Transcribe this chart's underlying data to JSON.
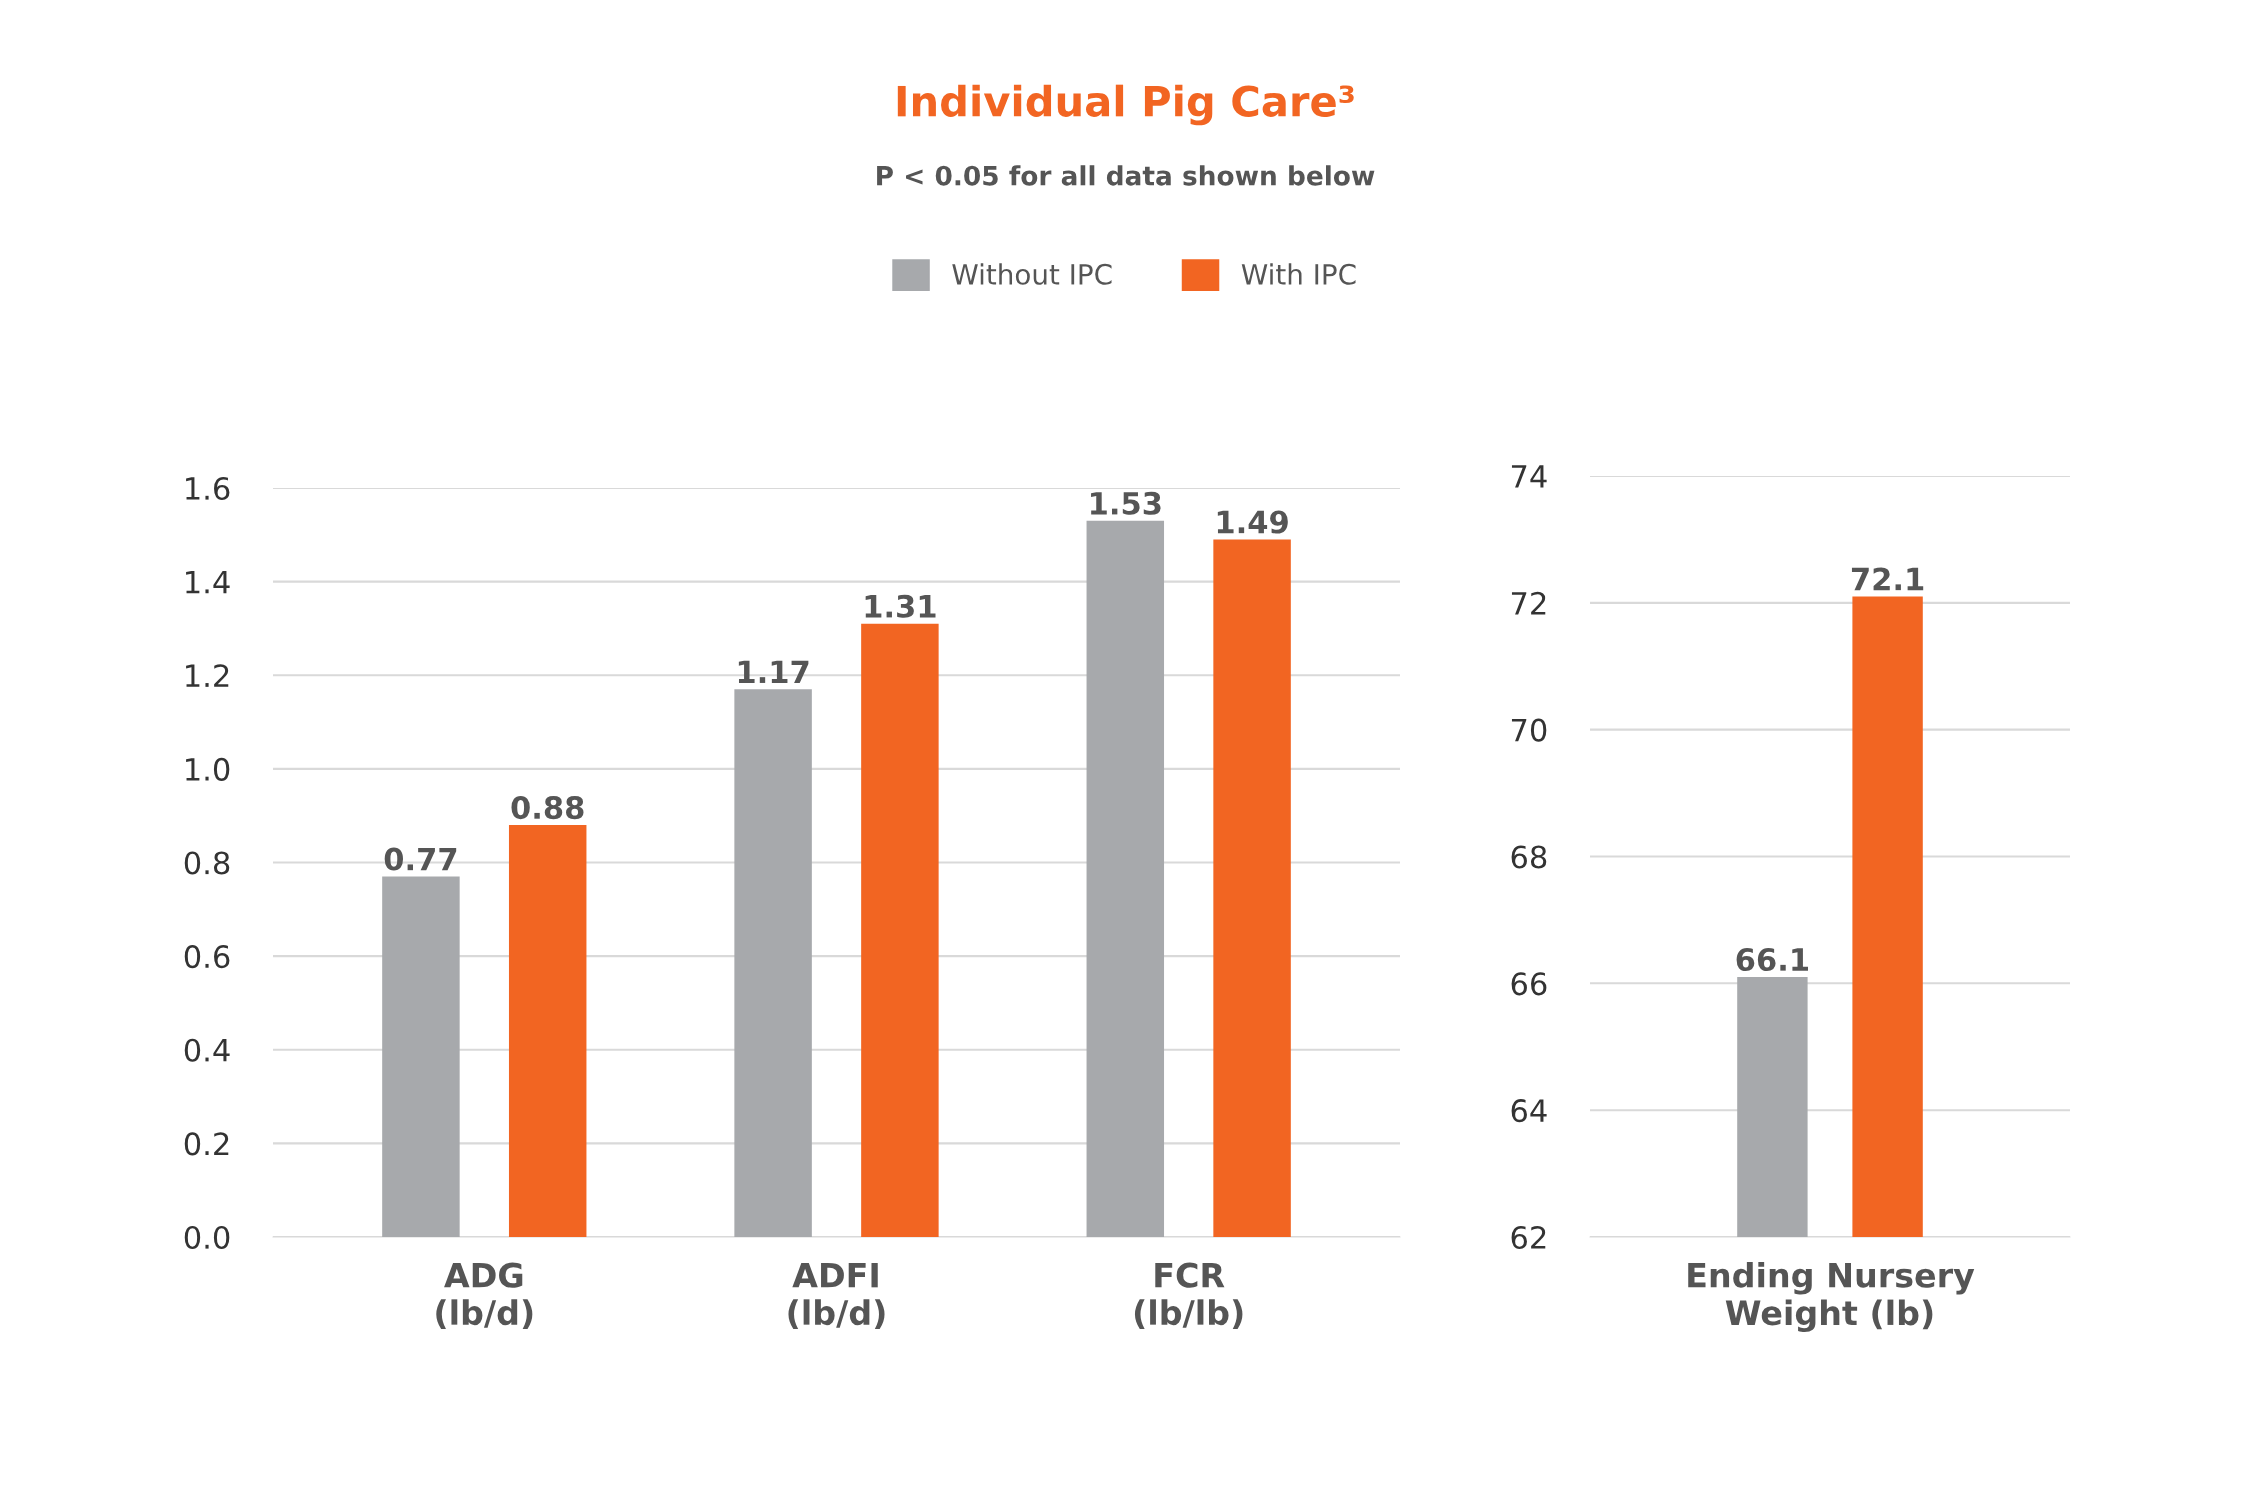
{
  "chart_data": [
    {
      "type": "bar",
      "title": "Individual Pig Care³",
      "subtitle": "P < 0.05 for all data shown below",
      "categories": [
        "ADG\n(lb/d)",
        "ADFI\n(lb/d)",
        "FCR\n(lb/lb)"
      ],
      "series": [
        {
          "name": "Without IPC",
          "color": "#a7a9ac",
          "values": [
            0.77,
            1.17,
            1.53
          ]
        },
        {
          "name": "With IPC",
          "color": "#f26522",
          "values": [
            0.88,
            1.31,
            1.49
          ]
        }
      ],
      "ylim": [
        0,
        1.6
      ],
      "yticks": [
        "0.0",
        "0.2",
        "0.4",
        "0.6",
        "0.8",
        "1.0",
        "1.2",
        "1.4",
        "1.6"
      ],
      "grid": "y",
      "legend": "top",
      "data_labels": true
    },
    {
      "type": "bar",
      "categories": [
        "Ending Nursery\nWeight (lb)"
      ],
      "series": [
        {
          "color": "#a7a9ac",
          "values": [
            66.1
          ]
        },
        {
          "color": "#f26522",
          "values": [
            72.1
          ]
        }
      ],
      "ylim": [
        62,
        74
      ],
      "yticks": [
        62,
        64,
        66,
        68,
        70,
        72,
        74
      ],
      "grid": "y",
      "data_labels": true
    }
  ]
}
